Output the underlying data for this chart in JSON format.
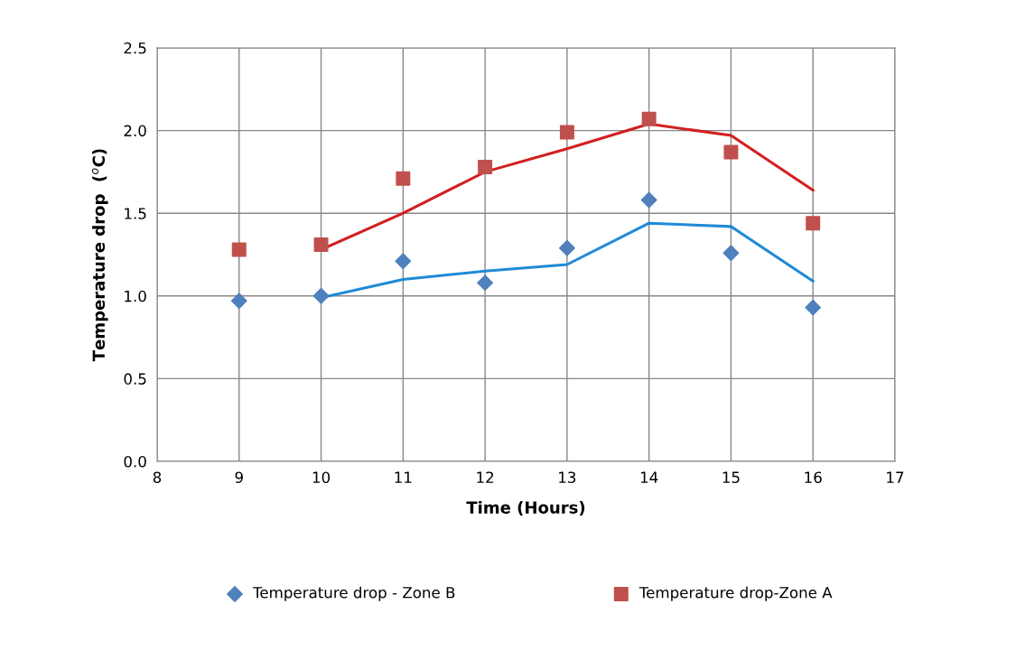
{
  "chart_data": {
    "type": "scatter",
    "xlabel": "Time (Hours)",
    "ylabel": "Temperature drop  ($^{o}$C)",
    "xlim": [
      8,
      17
    ],
    "xticks": [
      8,
      9,
      10,
      11,
      12,
      13,
      14,
      15,
      16,
      17
    ],
    "ylim": [
      0,
      2.5
    ],
    "yticks": [
      {
        "value": 0,
        "label": "0.0"
      },
      {
        "value": 0.5,
        "label": "0.5"
      },
      {
        "value": 1,
        "label": "1.0"
      },
      {
        "value": 1.5,
        "label": "1.5"
      },
      {
        "value": 2,
        "label": "2.0"
      },
      {
        "value": 2.5,
        "label": "2.5"
      }
    ],
    "grid": true,
    "legend": "bottom",
    "series": [
      {
        "name": "Temperature drop - Zone B",
        "marker": "diamond",
        "color": "#4f81bd",
        "x": [
          9,
          10,
          11,
          12,
          13,
          14,
          15,
          16
        ],
        "values": [
          0.97,
          1.0,
          1.21,
          1.08,
          1.29,
          1.58,
          1.26,
          0.93
        ]
      },
      {
        "name": "Temperature drop-Zone A",
        "marker": "square",
        "color": "#c0504d",
        "x": [
          9,
          10,
          11,
          12,
          13,
          14,
          15,
          16
        ],
        "values": [
          1.28,
          1.31,
          1.71,
          1.78,
          1.99,
          2.07,
          1.87,
          1.44
        ]
      },
      {
        "type": "line",
        "marker": "none",
        "color": "#1f8ad6",
        "x": [
          10,
          11,
          12,
          13,
          14,
          15,
          16
        ],
        "values": [
          0.99,
          1.1,
          1.15,
          1.19,
          1.44,
          1.42,
          1.09
        ]
      },
      {
        "type": "line",
        "marker": "none",
        "color": "#d21f1f",
        "x": [
          10,
          11,
          12,
          13,
          14,
          15,
          16
        ],
        "values": [
          1.28,
          1.5,
          1.75,
          1.89,
          2.04,
          1.97,
          1.64
        ]
      }
    ]
  }
}
